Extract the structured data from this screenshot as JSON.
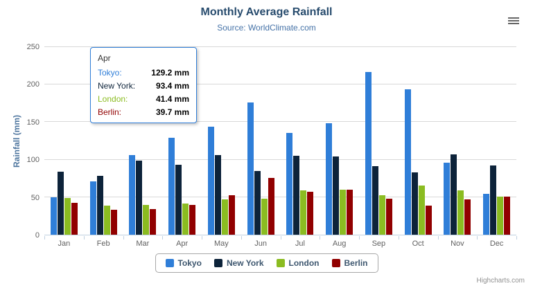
{
  "credits": "Highcharts.com",
  "chart_data": {
    "type": "bar",
    "title": "Monthly Average Rainfall",
    "subtitle": "Source: WorldClimate.com",
    "categories": [
      "Jan",
      "Feb",
      "Mar",
      "Apr",
      "May",
      "Jun",
      "Jul",
      "Aug",
      "Sep",
      "Oct",
      "Nov",
      "Dec"
    ],
    "series": [
      {
        "name": "Tokyo",
        "color": "#2f7ed8",
        "values": [
          49.9,
          71.5,
          106.4,
          129.2,
          144.0,
          176.0,
          135.6,
          148.5,
          216.4,
          194.1,
          95.6,
          54.4
        ]
      },
      {
        "name": "New York",
        "color": "#0d233a",
        "values": [
          83.6,
          78.8,
          98.5,
          93.4,
          106.0,
          84.5,
          105.0,
          104.3,
          91.2,
          83.5,
          106.6,
          92.3
        ]
      },
      {
        "name": "London",
        "color": "#8bbc21",
        "values": [
          48.9,
          38.8,
          39.3,
          41.4,
          47.0,
          48.3,
          59.0,
          59.6,
          52.4,
          65.2,
          59.3,
          51.2
        ]
      },
      {
        "name": "Berlin",
        "color": "#910000",
        "values": [
          42.4,
          33.2,
          34.5,
          39.7,
          52.6,
          75.5,
          57.4,
          60.4,
          47.6,
          39.1,
          46.8,
          51.1
        ]
      }
    ],
    "xlabel": "",
    "ylabel": "Rainfall (mm)",
    "ylim": [
      0,
      250
    ],
    "yticks": [
      0,
      50,
      100,
      150,
      200,
      250
    ],
    "grid": true,
    "legend_position": "bottom"
  },
  "tooltip": {
    "category": "Apr",
    "rows": [
      {
        "name": "Tokyo",
        "value": "129.2 mm",
        "color": "#2f7ed8"
      },
      {
        "name": "New York",
        "value": "93.4 mm",
        "color": "#0d233a"
      },
      {
        "name": "London",
        "value": "41.4 mm",
        "color": "#8bbc21"
      },
      {
        "name": "Berlin",
        "value": "39.7 mm",
        "color": "#910000"
      }
    ]
  }
}
